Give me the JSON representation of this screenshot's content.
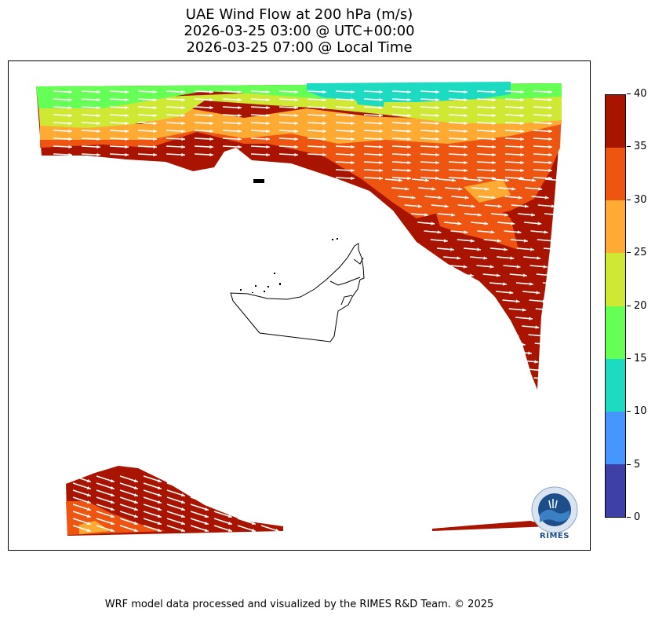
{
  "title": {
    "line1": "UAE Wind Flow at 200 hPa (m/s)",
    "line2": "2026-03-25 03:00 @ UTC+00:00",
    "line3": "2026-03-25 07:00 @ Local Time"
  },
  "colorbar": {
    "ticks": [
      "0",
      "5",
      "10",
      "15",
      "20",
      "25",
      "30",
      "35",
      "40"
    ],
    "colors": [
      "#3f3fa8",
      "#4596ff",
      "#1ddbc0",
      "#66ff55",
      "#cfe833",
      "#ffaa33",
      "#ee5511",
      "#a81400"
    ]
  },
  "logo": {
    "name": "RIMES"
  },
  "footer": "WRF model data processed and visualized by the RIMES R&D Team. © 2025"
}
